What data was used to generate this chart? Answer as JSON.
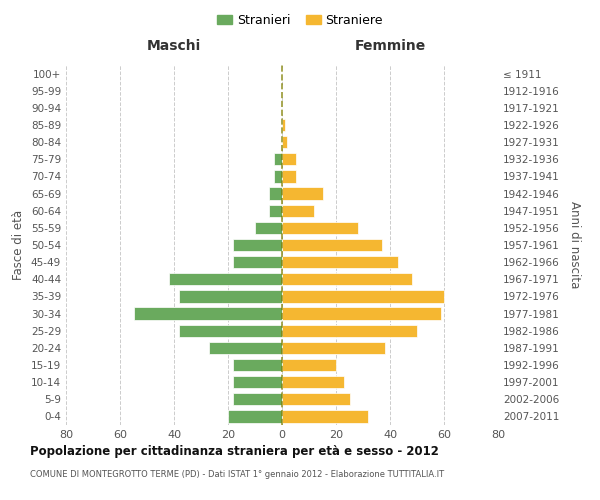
{
  "age_groups": [
    "100+",
    "95-99",
    "90-94",
    "85-89",
    "80-84",
    "75-79",
    "70-74",
    "65-69",
    "60-64",
    "55-59",
    "50-54",
    "45-49",
    "40-44",
    "35-39",
    "30-34",
    "25-29",
    "20-24",
    "15-19",
    "10-14",
    "5-9",
    "0-4"
  ],
  "birth_years": [
    "≤ 1911",
    "1912-1916",
    "1917-1921",
    "1922-1926",
    "1927-1931",
    "1932-1936",
    "1937-1941",
    "1942-1946",
    "1947-1951",
    "1952-1956",
    "1957-1961",
    "1962-1966",
    "1967-1971",
    "1972-1976",
    "1977-1981",
    "1982-1986",
    "1987-1991",
    "1992-1996",
    "1997-2001",
    "2002-2006",
    "2007-2011"
  ],
  "males": [
    0,
    0,
    0,
    0,
    0,
    3,
    3,
    5,
    5,
    10,
    18,
    18,
    42,
    38,
    55,
    38,
    27,
    18,
    18,
    18,
    20
  ],
  "females": [
    0,
    0,
    0,
    1,
    2,
    5,
    5,
    15,
    12,
    28,
    37,
    43,
    48,
    60,
    59,
    50,
    38,
    20,
    23,
    25,
    32
  ],
  "male_color": "#6aaa5e",
  "female_color": "#f5b731",
  "background_color": "#ffffff",
  "grid_color": "#cccccc",
  "title": "Popolazione per cittadinanza straniera per età e sesso - 2012",
  "subtitle": "COMUNE DI MONTEGROTTO TERME (PD) - Dati ISTAT 1° gennaio 2012 - Elaborazione TUTTITALIA.IT",
  "xlabel_left": "Maschi",
  "xlabel_right": "Femmine",
  "ylabel_left": "Fasce di età",
  "ylabel_right": "Anni di nascita",
  "xlim": 80,
  "legend_male": "Stranieri",
  "legend_female": "Straniere"
}
